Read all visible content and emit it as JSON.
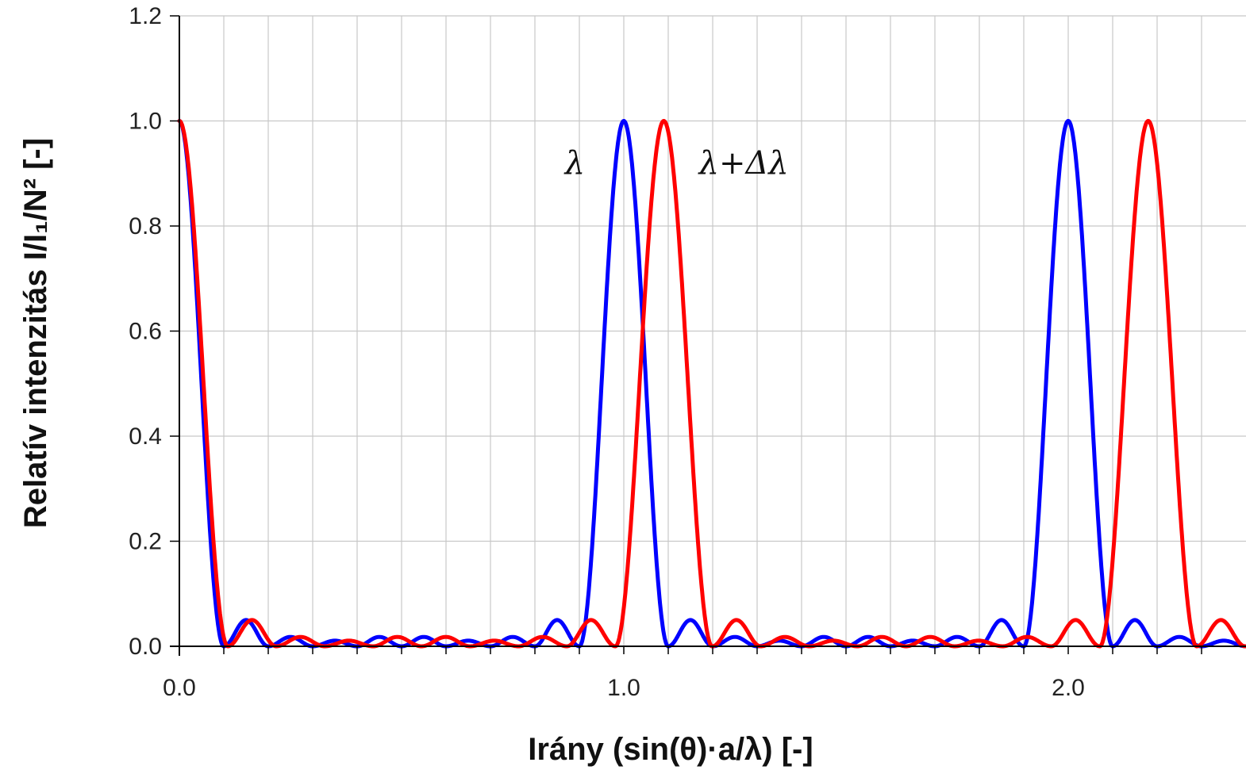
{
  "chart_data": {
    "type": "line",
    "title": "",
    "xlabel": "Irány (sin(θ)·a/λ)   [-]",
    "ylabel": "Relatív intenzitás I/I₁/N²   [-]",
    "xlim": [
      0,
      2.4
    ],
    "ylim": [
      0,
      1.2
    ],
    "x_major_ticks": [
      0.0,
      1.0,
      2.0
    ],
    "x_major_tick_labels": [
      "0.0",
      "1.0",
      "2.0"
    ],
    "x_minor_tick_step": 0.1,
    "y_ticks": [
      0.0,
      0.2,
      0.4,
      0.6,
      0.8,
      1.0,
      1.2
    ],
    "y_tick_labels": [
      "0.0",
      "0.2",
      "0.4",
      "0.6",
      "0.8",
      "1.0",
      "1.2"
    ],
    "grid": true,
    "legend": "none",
    "series": [
      {
        "color": "#0000ff",
        "peaks_x": [
          0.0,
          1.0,
          2.0
        ],
        "peak_value": 1.0,
        "first_sidelobe_value": 0.05,
        "zero_spacing": 0.1,
        "label": "λ"
      },
      {
        "color": "#ff0000",
        "peaks_x": [
          0.0,
          1.09,
          2.18
        ],
        "peak_value": 1.0,
        "first_sidelobe_value": 0.05,
        "zero_spacing": 0.109,
        "label": "λ+Δλ"
      }
    ],
    "annotations": [
      {
        "text": "λ",
        "x": 0.89,
        "y": 0.9
      },
      {
        "text": "λ+Δλ",
        "x": 1.27,
        "y": 0.9
      }
    ]
  }
}
